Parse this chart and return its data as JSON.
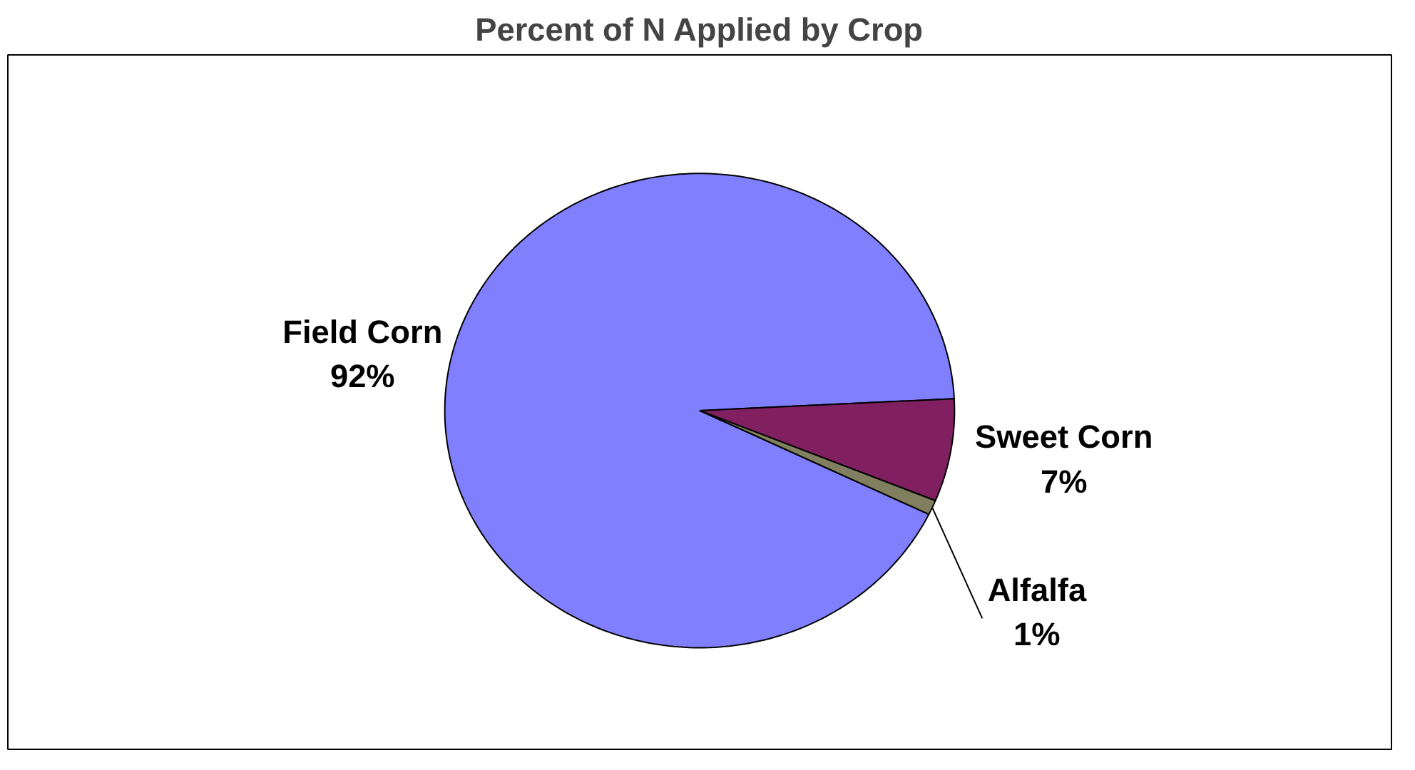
{
  "chart_data": {
    "type": "pie",
    "title": "Percent of N Applied by Crop",
    "categories": [
      "Field Corn",
      "Sweet Corn",
      "Alfalfa"
    ],
    "values": [
      92,
      7,
      1
    ],
    "value_labels": [
      "92%",
      "7%",
      "1%"
    ],
    "colors": [
      "#8080ff",
      "#802060",
      "#808060"
    ]
  }
}
